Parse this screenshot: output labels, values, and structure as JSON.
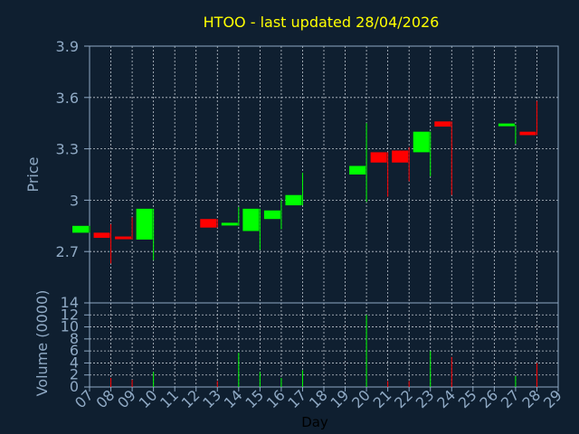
{
  "chart_data": {
    "type": "candlestick",
    "title": "HTOO - last updated 28/04/2026",
    "xlabel": "Day",
    "ylabel_price": "Price",
    "ylabel_volume": "Volume (0000)",
    "x_ticks": [
      "07",
      "08",
      "09",
      "10",
      "11",
      "12",
      "13",
      "14",
      "15",
      "16",
      "17",
      "18",
      "19",
      "20",
      "21",
      "22",
      "23",
      "24",
      "25",
      "26",
      "27",
      "28",
      "29"
    ],
    "price_ticks": [
      "2.7",
      "3",
      "3.3",
      "3.6",
      "3.9"
    ],
    "price_ylim": [
      2.4,
      3.9
    ],
    "volume_ticks": [
      "0",
      "2",
      "4",
      "6",
      "8",
      "10",
      "12",
      "14"
    ],
    "volume_ylim": [
      0,
      14
    ],
    "grid": true,
    "colors": {
      "background": "#0f1f30",
      "title": "#ffff00",
      "axis_text": "#8fa9c4",
      "axis_line": "#8fa9c4",
      "grid": "#c0c8d0",
      "up": "#00ff00",
      "down": "#ff0000",
      "label_dark": "#000000"
    },
    "candles": [
      {
        "day": 7,
        "open": 2.81,
        "close": 2.85,
        "high": 2.85,
        "low": 2.81,
        "volume": 0
      },
      {
        "day": 8,
        "open": 2.81,
        "close": 2.78,
        "high": 2.86,
        "low": 2.63,
        "volume": 1.5
      },
      {
        "day": 9,
        "open": 2.78,
        "close": 2.77,
        "high": 2.9,
        "low": 2.77,
        "volume": 1.2
      },
      {
        "day": 10,
        "open": 2.77,
        "close": 2.95,
        "high": 2.95,
        "low": 2.65,
        "volume": 2.5
      },
      {
        "day": 13,
        "open": 2.89,
        "close": 2.84,
        "high": 2.89,
        "low": 2.84,
        "volume": 1.0
      },
      {
        "day": 14,
        "open": 2.85,
        "close": 2.86,
        "high": 2.96,
        "low": 2.85,
        "volume": 5.7
      },
      {
        "day": 15,
        "open": 2.82,
        "close": 2.95,
        "high": 2.95,
        "low": 2.71,
        "volume": 2.5
      },
      {
        "day": 16,
        "open": 2.89,
        "close": 2.94,
        "high": 3.0,
        "low": 2.83,
        "volume": 1.5
      },
      {
        "day": 17,
        "open": 2.97,
        "close": 3.03,
        "high": 3.16,
        "low": 2.97,
        "volume": 2.8
      },
      {
        "day": 20,
        "open": 3.15,
        "close": 3.2,
        "high": 3.45,
        "low": 2.99,
        "volume": 12.0
      },
      {
        "day": 21,
        "open": 3.28,
        "close": 3.22,
        "high": 3.28,
        "low": 3.02,
        "volume": 1.0
      },
      {
        "day": 22,
        "open": 3.29,
        "close": 3.22,
        "high": 3.31,
        "low": 3.11,
        "volume": 1.0
      },
      {
        "day": 23,
        "open": 3.28,
        "close": 3.4,
        "high": 3.4,
        "low": 3.14,
        "volume": 6.0
      },
      {
        "day": 24,
        "open": 3.46,
        "close": 3.43,
        "high": 3.46,
        "low": 3.03,
        "volume": 5.0
      },
      {
        "day": 27,
        "open": 3.44,
        "close": 3.44,
        "high": 3.44,
        "low": 3.33,
        "volume": 1.8
      },
      {
        "day": 28,
        "open": 3.4,
        "close": 3.38,
        "high": 3.58,
        "low": 3.38,
        "volume": 4.0
      }
    ]
  }
}
